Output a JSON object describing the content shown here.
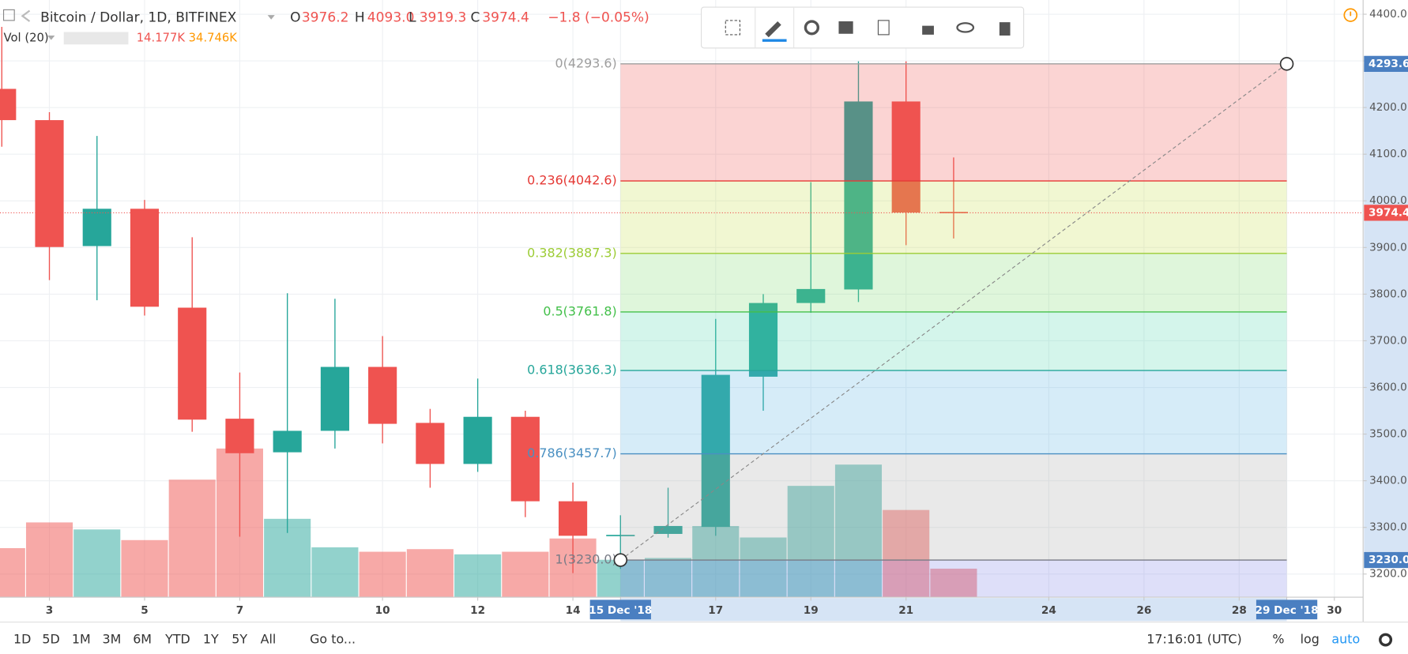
{
  "header": {
    "symbol": "Bitcoin / Dollar, 1D, BITFINEX",
    "ohlc": [
      {
        "key": "O",
        "value": "3976.2"
      },
      {
        "key": "H",
        "value": "4093.0"
      },
      {
        "key": "L",
        "value": "3919.3"
      },
      {
        "key": "C",
        "value": "3974.4"
      }
    ],
    "change": "−1.8 (−0.05%)"
  },
  "volume_legend": {
    "label": "Vol (20)",
    "value": "14.177K",
    "ma": "34.746K"
  },
  "bottom_bar": {
    "ranges": [
      "1D",
      "5D",
      "1M",
      "3M",
      "6M",
      "YTD",
      "1Y",
      "5Y",
      "All"
    ],
    "goto": "Go to...",
    "time": "17:16:01 (UTC)",
    "percent": "%",
    "log": "log",
    "auto": "auto"
  },
  "chart_data": {
    "type": "candlestick",
    "up_color": "#26a69a",
    "down_color": "#ef5350",
    "x": [
      2,
      3,
      4,
      5,
      6,
      7,
      8,
      9,
      10,
      11,
      12,
      13,
      14,
      15,
      16,
      17,
      18,
      19,
      20,
      21,
      22
    ],
    "open": [
      4240,
      4173,
      3903,
      3983,
      3771,
      3533,
      3461,
      3507,
      3644,
      3524,
      3436,
      3537,
      3356,
      3282,
      3286,
      3301,
      3623,
      3781,
      3810,
      4213,
      3976.2
    ],
    "high": [
      4373,
      4190,
      4139,
      4002,
      3922,
      3632,
      3802,
      3790,
      3710,
      3554,
      3619,
      3550,
      3396,
      3326,
      3385,
      3747,
      3800,
      4040,
      4299,
      4299,
      4093.0
    ],
    "low": [
      4116,
      3830,
      3787,
      3754,
      3505,
      3280,
      3288,
      3469,
      3480,
      3385,
      3419,
      3322,
      3202,
      3211,
      3278,
      3282,
      3550,
      3760,
      3783,
      3905,
      3919.3
    ],
    "close": [
      4173,
      3901,
      3983,
      3773,
      3531,
      3459,
      3507,
      3644,
      3522,
      3436,
      3537,
      3356,
      3282,
      3284,
      3303,
      3627,
      3781,
      3811,
      4213,
      3975,
      3974.4
    ],
    "volume": [
      24400,
      37200,
      33700,
      28400,
      58500,
      74000,
      39000,
      24800,
      22600,
      23900,
      21300,
      22600,
      29200,
      18600,
      19500,
      35400,
      29700,
      55400,
      66000,
      43400,
      14177
    ],
    "volume_ylim": [
      0,
      150000
    ],
    "xlim": [
      1.962,
      30.604
    ],
    "ylim": [
      3150.5,
      4430.5
    ],
    "xticks": [
      3,
      5,
      7,
      10,
      12,
      14,
      {
        "value": 15,
        "label": "15 Dec '18"
      },
      17,
      19,
      21,
      24,
      26,
      28,
      {
        "value": 29,
        "label": "29 Dec '18"
      },
      30
    ],
    "yticks": [
      {
        "value": 3200,
        "label": "3200.0"
      },
      {
        "value": 3300,
        "label": "3300.0"
      },
      {
        "value": 3400,
        "label": "3400.0"
      },
      {
        "value": 3500,
        "label": "3500.0"
      },
      {
        "value": 3600,
        "label": "3600.0"
      },
      {
        "value": 3700,
        "label": "3700.0"
      },
      {
        "value": 3800,
        "label": "3800.0"
      },
      {
        "value": 3900,
        "label": "3900.0"
      },
      {
        "value": 4000,
        "label": "4000.0"
      },
      {
        "value": 4100,
        "label": "4100.0"
      },
      {
        "value": 4200,
        "label": "4200.0"
      },
      {
        "value": 4300,
        "label": "4300.0"
      },
      {
        "value": 4400,
        "label": "4400.0"
      }
    ],
    "grid": true,
    "fib_x": [
      15,
      29
    ],
    "fib_levels": [
      {
        "value": 4293.6,
        "label": "0(4293.6)",
        "color": "#9e9e9e",
        "fill": "#ef5350"
      },
      {
        "value": 4042.6,
        "label": "0.236(4042.6)",
        "color": "#e53935",
        "fill": "#c6de4a"
      },
      {
        "value": 3887.3,
        "label": "0.382(3887.3)",
        "color": "#9ccc34",
        "fill": "#7fdc6e"
      },
      {
        "value": 3761.8,
        "label": "0.5(3761.8)",
        "color": "#43c04a",
        "fill": "#55d8b0"
      },
      {
        "value": 3636.3,
        "label": "0.618(3636.3)",
        "color": "#26a69a",
        "fill": "#5ab2e2"
      },
      {
        "value": 3457.7,
        "label": "0.786(3457.7)",
        "color": "#4a90c2",
        "fill": "#a8a8a8"
      },
      {
        "value": 3230.0,
        "label": "1(3230.0)",
        "color": "#787b86",
        "fill": "#7b7fe8"
      }
    ],
    "price_tags": [
      {
        "value": 4293.6,
        "label": "4293.6",
        "color": "#4a7fc1"
      },
      {
        "value": 3974.4,
        "label": "3974.4",
        "color": "#ef5350"
      },
      {
        "value": 3230.0,
        "label": "3230.0",
        "color": "#4a7fc1"
      }
    ]
  }
}
